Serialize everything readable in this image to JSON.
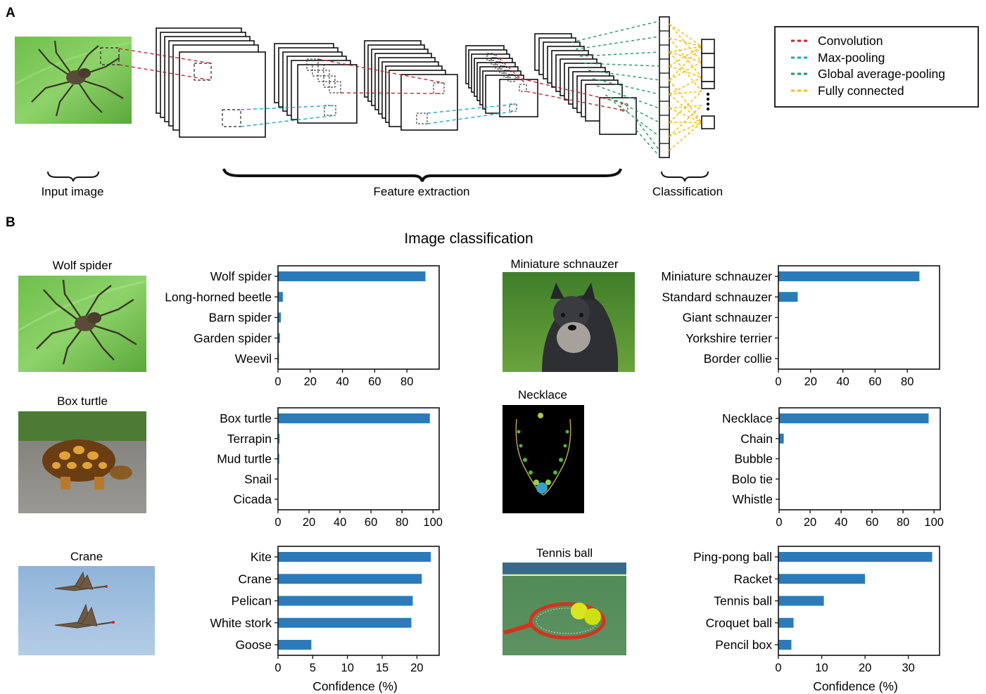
{
  "panel_a": {
    "letter": "A",
    "stage_labels": {
      "input": "Input image",
      "features": "Feature extraction",
      "classification": "Classification"
    },
    "legend": [
      {
        "label": "Convolution",
        "color": "#c0272d"
      },
      {
        "label": "Max-pooling",
        "color": "#1ba6c7"
      },
      {
        "label": "Global average-pooling",
        "color": "#1a9a5c"
      },
      {
        "label": "Fully connected",
        "color": "#f5bf1a"
      }
    ]
  },
  "panel_b": {
    "letter": "B",
    "title": "Image classification",
    "bar_color": "#2b7bba",
    "x_axis_label": "Confidence (%)"
  },
  "chart_data": [
    {
      "type": "bar",
      "orientation": "horizontal",
      "image_label": "Wolf spider",
      "categories": [
        "Wolf spider",
        "Long-horned beetle",
        "Barn spider",
        "Garden spider",
        "Weevil"
      ],
      "values": [
        91.5,
        3.0,
        1.8,
        1.2,
        0.6
      ],
      "xlim": [
        0,
        100
      ],
      "xticks": [
        0,
        20,
        40,
        60,
        80
      ],
      "xlabel": ""
    },
    {
      "type": "bar",
      "orientation": "horizontal",
      "image_label": "Miniature schnauzer",
      "categories": [
        "Miniature schnauzer",
        "Standard schnauzer",
        "Giant schnauzer",
        "Yorkshire terrier",
        "Border collie"
      ],
      "values": [
        87.5,
        12.0,
        0.2,
        0.1,
        0.1
      ],
      "xlim": [
        0,
        100
      ],
      "xticks": [
        0,
        20,
        40,
        60,
        80
      ],
      "xlabel": ""
    },
    {
      "type": "bar",
      "orientation": "horizontal",
      "image_label": "Box turtle",
      "categories": [
        "Box turtle",
        "Terrapin",
        "Mud turtle",
        "Snail",
        "Cicada"
      ],
      "values": [
        98.0,
        1.0,
        0.8,
        0.1,
        0.1
      ],
      "xlim": [
        0,
        104
      ],
      "xticks": [
        0,
        20,
        40,
        60,
        80,
        100
      ],
      "xlabel": ""
    },
    {
      "type": "bar",
      "orientation": "horizontal",
      "image_label": "Necklace",
      "categories": [
        "Necklace",
        "Chain",
        "Bubble",
        "Bolo tie",
        "Whistle"
      ],
      "values": [
        96.5,
        3.0,
        0.1,
        0.1,
        0.1
      ],
      "xlim": [
        0,
        104
      ],
      "xticks": [
        0,
        20,
        40,
        60,
        80,
        100
      ],
      "xlabel": ""
    },
    {
      "type": "bar",
      "orientation": "horizontal",
      "image_label": "Crane",
      "categories": [
        "Kite",
        "Crane",
        "Pelican",
        "White stork",
        "Goose"
      ],
      "values": [
        22.0,
        20.7,
        19.4,
        19.2,
        4.8
      ],
      "xlim": [
        0,
        23.2
      ],
      "xticks": [
        0,
        5,
        10,
        15,
        20
      ],
      "xlabel": "Confidence (%)"
    },
    {
      "type": "bar",
      "orientation": "horizontal",
      "image_label": "Tennis ball",
      "categories": [
        "Ping-pong ball",
        "Racket",
        "Tennis ball",
        "Croquet ball",
        "Pencil box"
      ],
      "values": [
        35.5,
        20.0,
        10.5,
        3.5,
        3.0
      ],
      "xlim": [
        0,
        37.2
      ],
      "xticks": [
        0,
        10,
        20,
        30
      ],
      "xlabel": "Confidence (%)"
    }
  ]
}
